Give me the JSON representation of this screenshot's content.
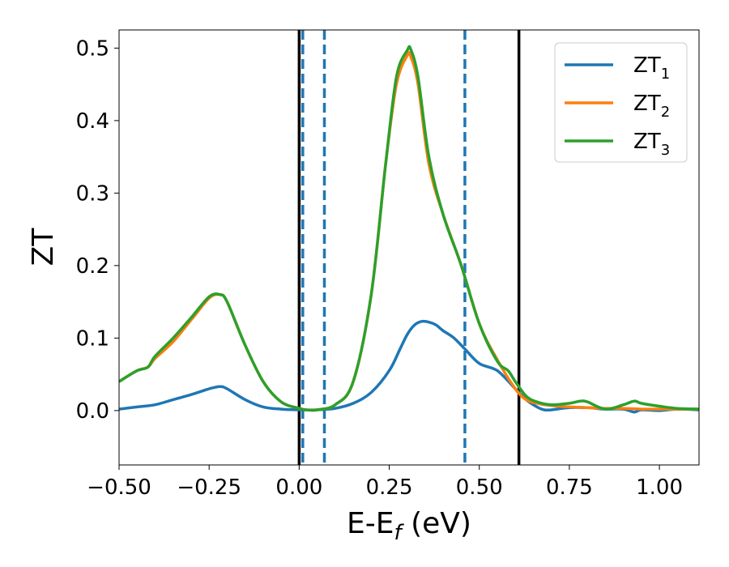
{
  "chart_data": {
    "type": "line",
    "xlabel_main": "E-E",
    "xlabel_sub": "f",
    "xlabel_unit": " (eV)",
    "ylabel": "ZT",
    "xlim": [
      -0.5,
      1.11
    ],
    "ylim": [
      -0.075,
      0.525
    ],
    "x_ticks": [
      -0.5,
      -0.25,
      0.0,
      0.25,
      0.5,
      0.75,
      1.0
    ],
    "x_tick_labels": [
      "−0.50",
      "−0.25",
      "0.00",
      "0.25",
      "0.50",
      "0.75",
      "1.00"
    ],
    "y_ticks": [
      0.0,
      0.1,
      0.2,
      0.3,
      0.4,
      0.5
    ],
    "y_tick_labels": [
      "0.0",
      "0.1",
      "0.2",
      "0.3",
      "0.4",
      "0.5"
    ],
    "grid": false,
    "legend_position": "top-right",
    "vlines_solid": [
      0.0,
      0.61
    ],
    "vlines_dashed": [
      0.01,
      0.07,
      0.46
    ],
    "series": [
      {
        "name_main": "ZT",
        "name_sub": "1",
        "color": "#1f77b4",
        "x": [
          -0.5,
          -0.45,
          -0.4,
          -0.35,
          -0.3,
          -0.25,
          -0.22,
          -0.2,
          -0.15,
          -0.1,
          -0.05,
          0.0,
          0.05,
          0.1,
          0.15,
          0.2,
          0.25,
          0.28,
          0.3,
          0.32,
          0.34,
          0.36,
          0.38,
          0.4,
          0.43,
          0.46,
          0.5,
          0.55,
          0.6,
          0.63,
          0.66,
          0.68,
          0.7,
          0.75,
          0.8,
          0.85,
          0.9,
          0.93,
          0.95,
          1.0,
          1.05,
          1.11
        ],
        "y": [
          0.002,
          0.005,
          0.008,
          0.015,
          0.022,
          0.03,
          0.033,
          0.03,
          0.015,
          0.005,
          0.002,
          0.001,
          0.001,
          0.003,
          0.01,
          0.025,
          0.055,
          0.085,
          0.105,
          0.118,
          0.123,
          0.122,
          0.118,
          0.11,
          0.1,
          0.085,
          0.065,
          0.055,
          0.03,
          0.015,
          0.005,
          0.001,
          0.001,
          0.004,
          0.004,
          0.002,
          0.002,
          -0.002,
          0.001,
          0.0,
          0.002,
          0.001
        ]
      },
      {
        "name_main": "ZT",
        "name_sub": "2",
        "color": "#ff7f0e",
        "x": [
          -0.5,
          -0.45,
          -0.42,
          -0.4,
          -0.35,
          -0.3,
          -0.25,
          -0.22,
          -0.2,
          -0.15,
          -0.1,
          -0.05,
          0.0,
          0.02,
          0.05,
          0.1,
          0.15,
          0.2,
          0.24,
          0.27,
          0.3,
          0.31,
          0.33,
          0.36,
          0.4,
          0.45,
          0.5,
          0.55,
          0.6,
          0.63,
          0.66,
          0.7,
          0.75,
          0.8,
          0.85,
          0.9,
          0.95,
          1.0,
          1.05,
          1.11
        ],
        "y": [
          0.04,
          0.055,
          0.06,
          0.072,
          0.095,
          0.125,
          0.155,
          0.16,
          0.15,
          0.09,
          0.04,
          0.012,
          0.003,
          0.001,
          0.001,
          0.008,
          0.04,
          0.16,
          0.34,
          0.45,
          0.49,
          0.488,
          0.45,
          0.34,
          0.27,
          0.2,
          0.12,
          0.07,
          0.03,
          0.015,
          0.01,
          0.007,
          0.005,
          0.004,
          0.003,
          0.003,
          0.002,
          0.002,
          0.002,
          0.002
        ]
      },
      {
        "name_main": "ZT",
        "name_sub": "3",
        "color": "#2ca02c",
        "x": [
          -0.5,
          -0.45,
          -0.42,
          -0.4,
          -0.35,
          -0.3,
          -0.25,
          -0.22,
          -0.2,
          -0.15,
          -0.1,
          -0.05,
          0.0,
          0.02,
          0.05,
          0.1,
          0.15,
          0.2,
          0.24,
          0.27,
          0.3,
          0.31,
          0.33,
          0.36,
          0.4,
          0.45,
          0.5,
          0.55,
          0.58,
          0.6,
          0.63,
          0.66,
          0.7,
          0.75,
          0.78,
          0.8,
          0.85,
          0.9,
          0.93,
          0.95,
          1.0,
          1.05,
          1.11
        ],
        "y": [
          0.04,
          0.055,
          0.06,
          0.075,
          0.1,
          0.128,
          0.157,
          0.16,
          0.15,
          0.09,
          0.04,
          0.012,
          0.003,
          0.001,
          0.001,
          0.008,
          0.04,
          0.16,
          0.34,
          0.46,
          0.497,
          0.498,
          0.46,
          0.35,
          0.27,
          0.2,
          0.12,
          0.068,
          0.055,
          0.04,
          0.02,
          0.012,
          0.008,
          0.01,
          0.013,
          0.012,
          0.002,
          0.008,
          0.013,
          0.01,
          0.006,
          0.003,
          0.002
        ]
      }
    ]
  }
}
